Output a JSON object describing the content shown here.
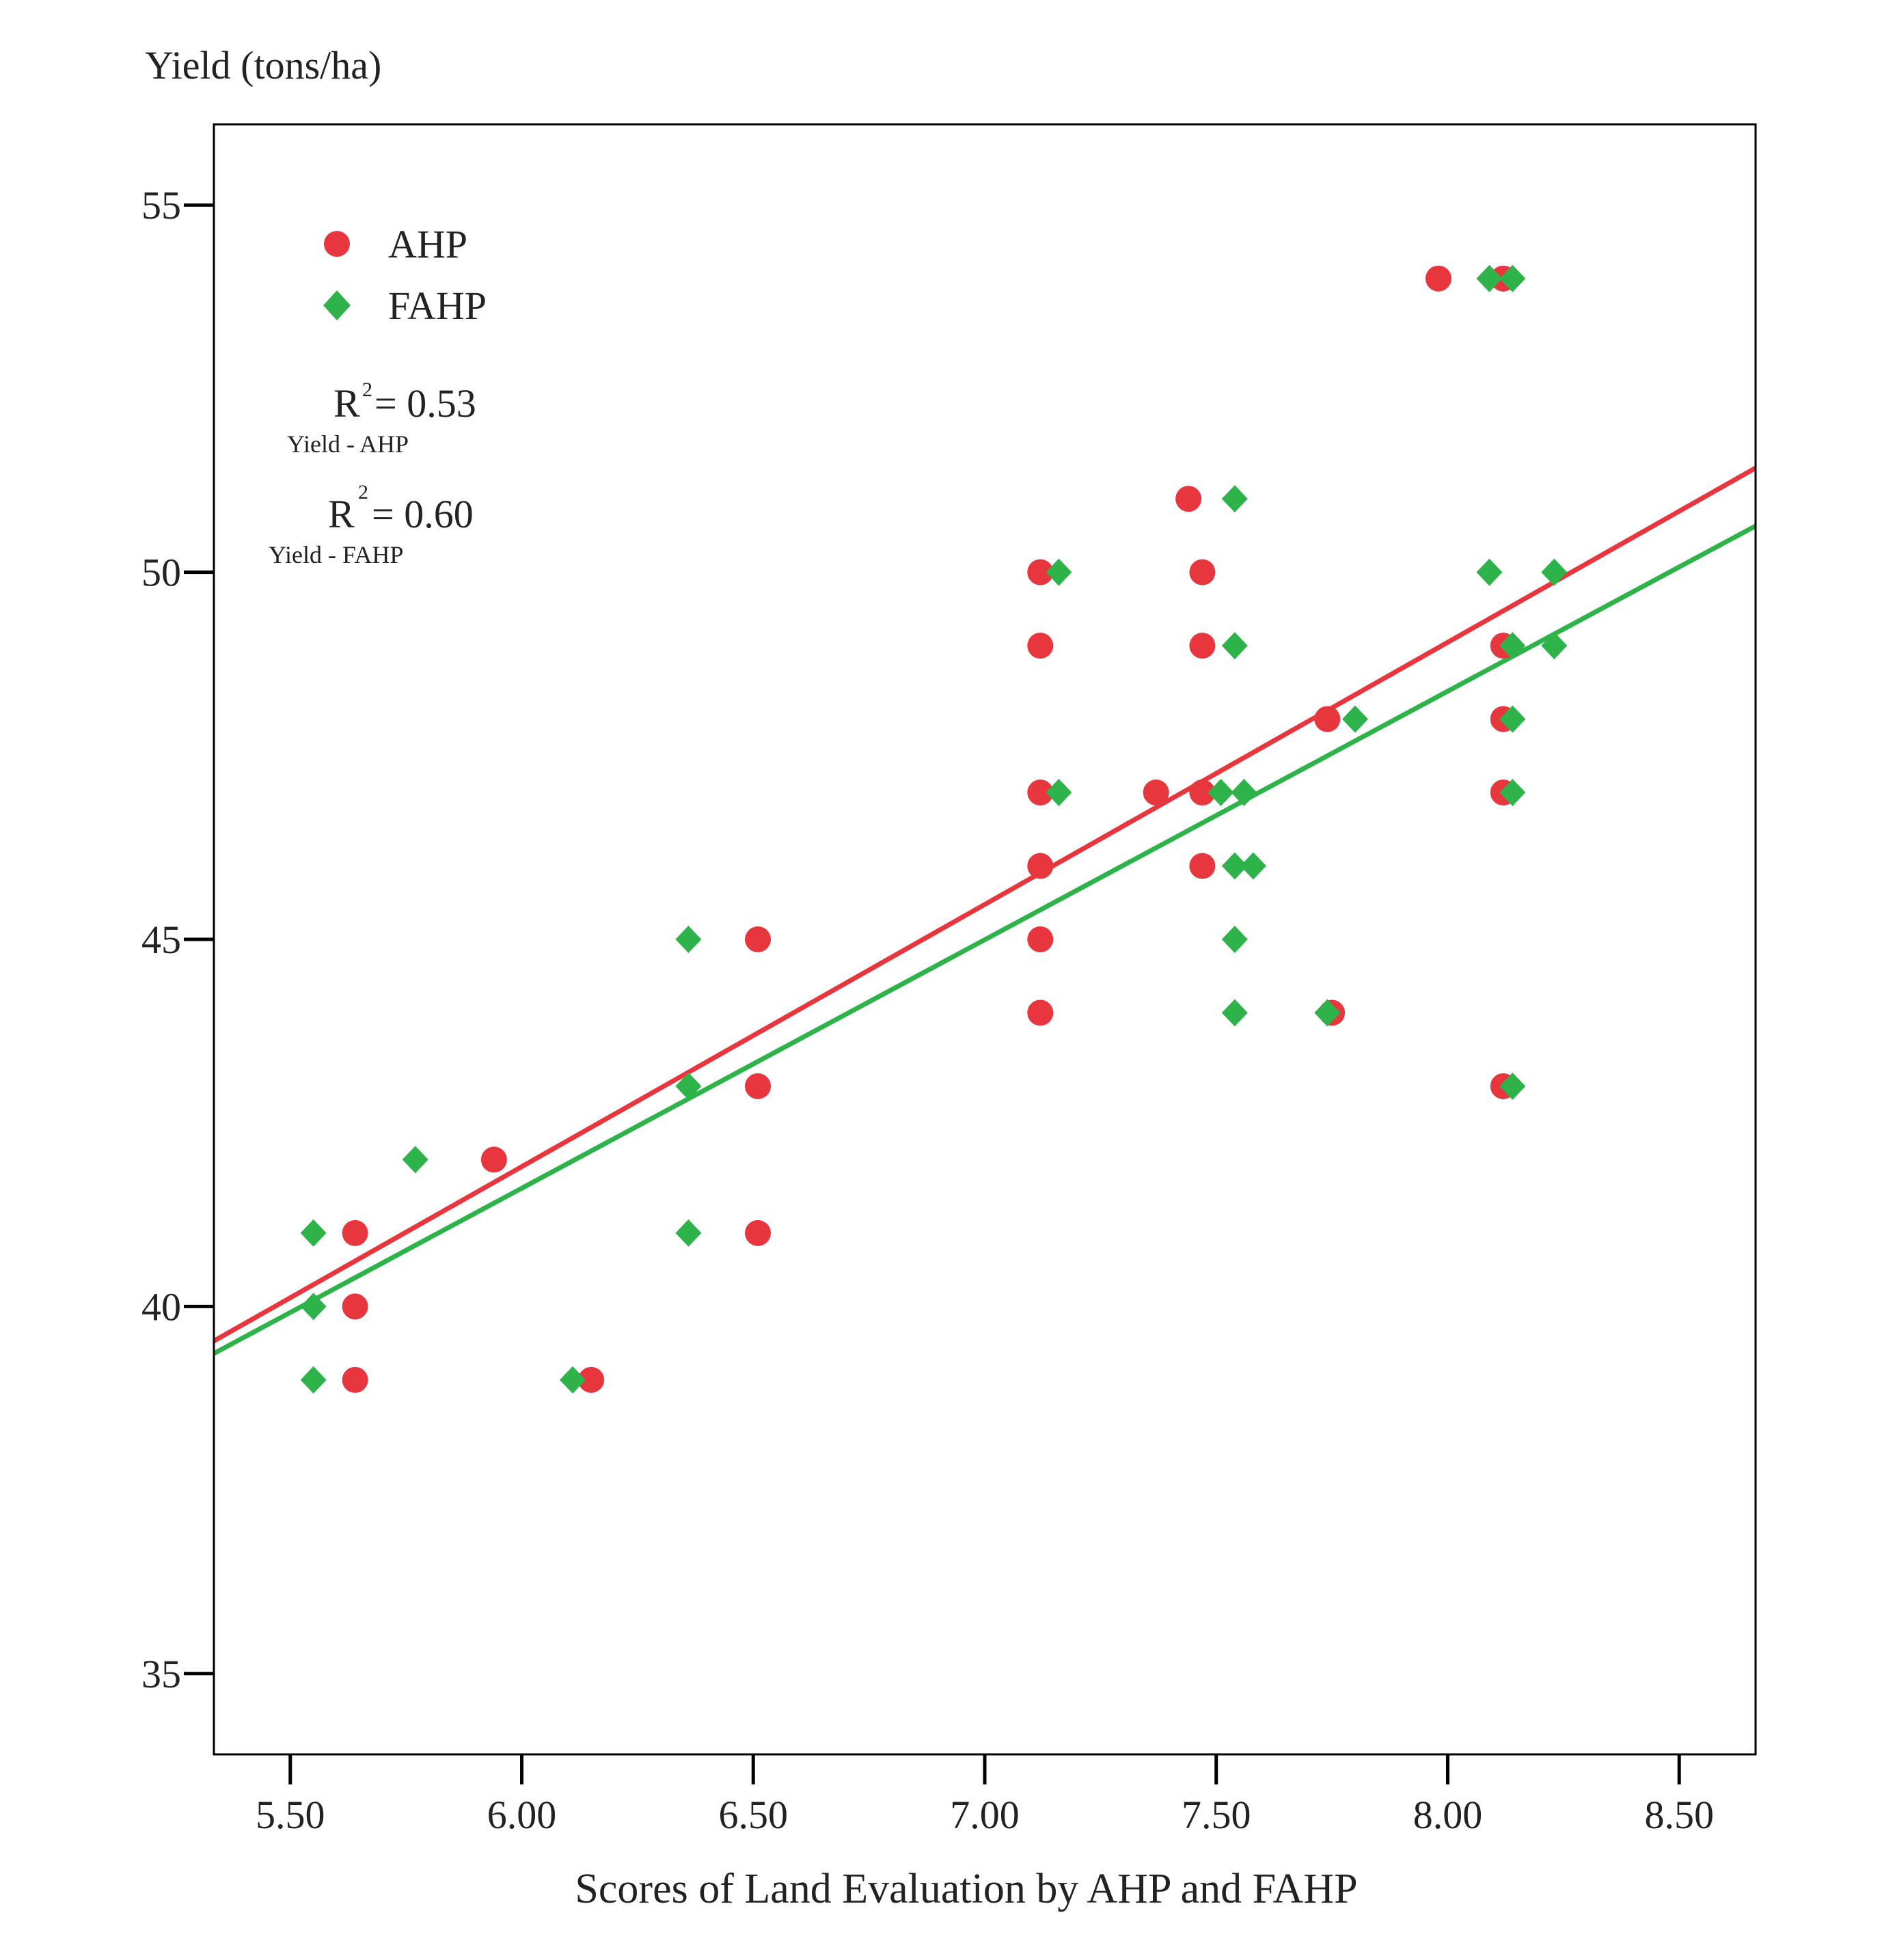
{
  "chart_data": {
    "type": "scatter",
    "title": "",
    "xlabel": "Scores of Land Evaluation by AHP and FAHP",
    "ylabel": "Yield (tons/ha)",
    "xlim": [
      5.335,
      8.665
    ],
    "ylim": [
      33.9,
      56.1
    ],
    "xticks": [
      5.5,
      6.0,
      6.5,
      7.0,
      7.5,
      8.0,
      8.5
    ],
    "xtick_labels": [
      "5.50",
      "6.00",
      "6.50",
      "7.00",
      "7.50",
      "8.00",
      "8.50"
    ],
    "yticks": [
      35,
      40,
      45,
      50,
      55
    ],
    "ytick_labels": [
      "35",
      "40",
      "45",
      "50",
      "55"
    ],
    "legend_position": "top-left",
    "series": [
      {
        "name": "AHP",
        "marker": "circle",
        "color": "#e8363e",
        "points": [
          [
            5.64,
            41
          ],
          [
            5.64,
            40
          ],
          [
            5.64,
            39
          ],
          [
            5.94,
            42
          ],
          [
            6.15,
            39
          ],
          [
            6.51,
            45
          ],
          [
            6.51,
            43
          ],
          [
            6.51,
            41
          ],
          [
            7.12,
            50
          ],
          [
            7.12,
            49
          ],
          [
            7.12,
            47
          ],
          [
            7.12,
            46
          ],
          [
            7.12,
            45
          ],
          [
            7.12,
            44
          ],
          [
            7.37,
            47
          ],
          [
            7.44,
            51
          ],
          [
            7.47,
            50
          ],
          [
            7.47,
            49
          ],
          [
            7.47,
            47
          ],
          [
            7.47,
            46
          ],
          [
            7.74,
            48
          ],
          [
            7.75,
            44
          ],
          [
            7.98,
            54
          ],
          [
            8.12,
            54
          ],
          [
            8.12,
            49
          ],
          [
            8.12,
            48
          ],
          [
            8.12,
            47
          ],
          [
            8.12,
            43
          ]
        ],
        "fit": {
          "x": [
            5.335,
            8.665
          ],
          "y": [
            39.53,
            51.42
          ]
        }
      },
      {
        "name": "FAHP",
        "marker": "diamond",
        "color": "#2db34a",
        "points": [
          [
            5.55,
            41
          ],
          [
            5.55,
            40
          ],
          [
            5.55,
            39
          ],
          [
            5.77,
            42
          ],
          [
            6.11,
            39
          ],
          [
            6.36,
            45
          ],
          [
            6.36,
            43
          ],
          [
            6.36,
            41
          ],
          [
            7.16,
            50
          ],
          [
            7.16,
            47
          ],
          [
            7.51,
            47
          ],
          [
            7.54,
            51
          ],
          [
            7.54,
            49
          ],
          [
            7.54,
            46
          ],
          [
            7.54,
            45
          ],
          [
            7.54,
            44
          ],
          [
            7.56,
            47
          ],
          [
            7.58,
            46
          ],
          [
            7.74,
            44
          ],
          [
            7.8,
            48
          ],
          [
            8.09,
            54
          ],
          [
            8.09,
            50
          ],
          [
            8.14,
            54
          ],
          [
            8.14,
            49
          ],
          [
            8.14,
            48
          ],
          [
            8.14,
            47
          ],
          [
            8.14,
            43
          ],
          [
            8.23,
            50
          ],
          [
            8.23,
            49
          ]
        ],
        "fit": {
          "x": [
            5.335,
            8.665
          ],
          "y": [
            39.36,
            50.63
          ]
        }
      }
    ],
    "annotations": [
      {
        "symbol": "R",
        "exponent": "2",
        "value": "= 0.53",
        "subscript": "Yield - AHP"
      },
      {
        "symbol": "R",
        "exponent": "2",
        "value": "= 0.60",
        "subscript": "Yield - FAHP"
      }
    ]
  }
}
